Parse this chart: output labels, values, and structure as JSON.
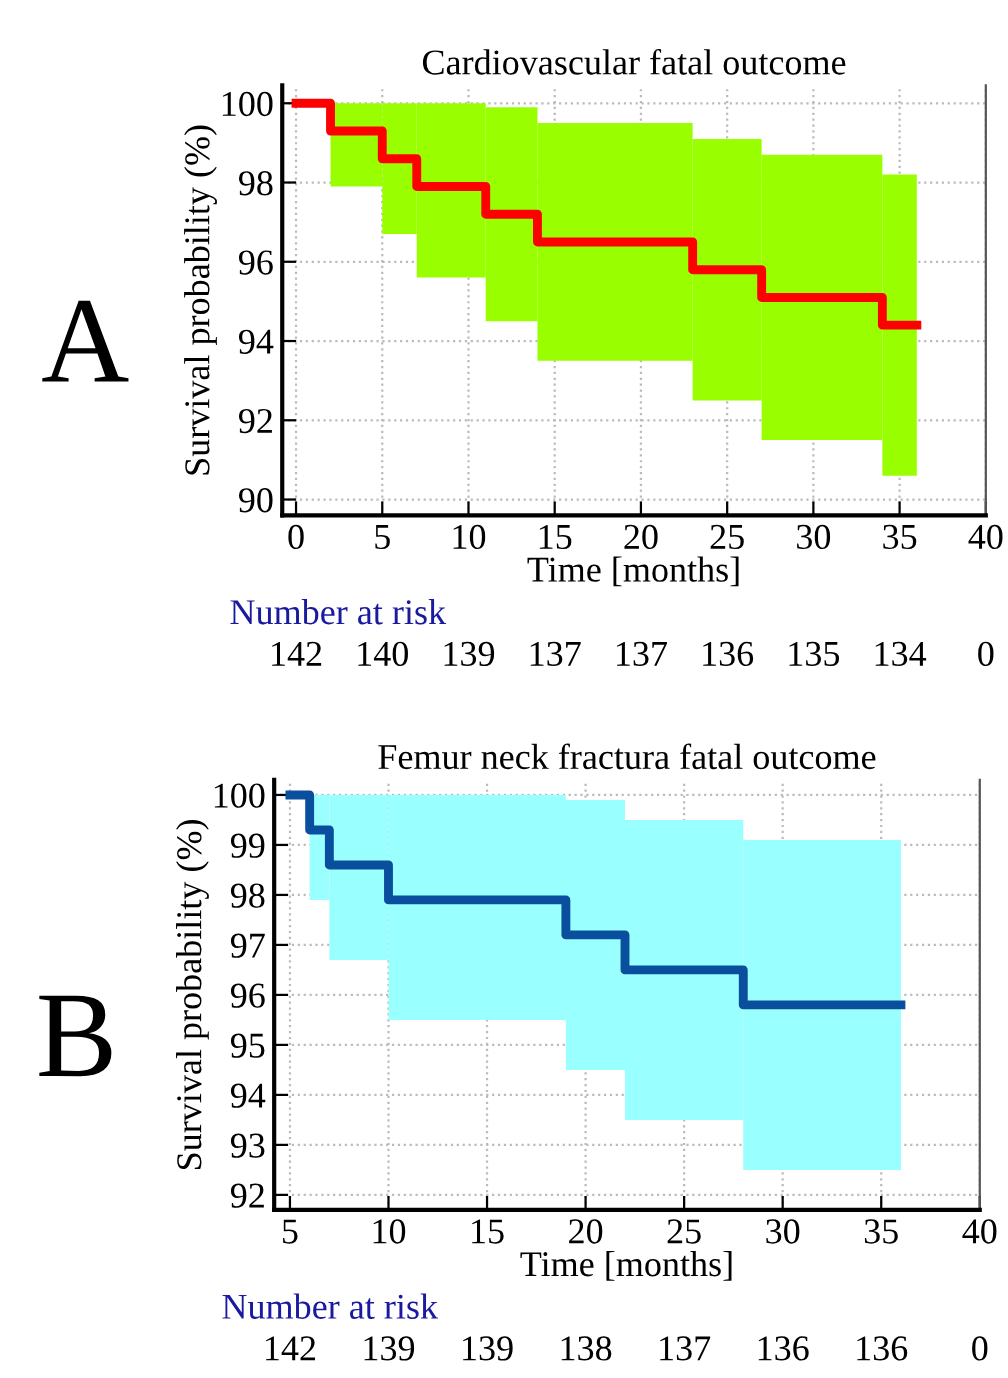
{
  "chart_data": [
    {
      "type": "step",
      "title": "Cardiovascular fatal outcome",
      "xlabel": "Time [months]",
      "ylabel": "Survival probability (%)",
      "xlim": [
        -0.8,
        40
      ],
      "ylim": [
        89.6,
        100.45
      ],
      "xticks": [
        0,
        5,
        10,
        15,
        20,
        25,
        30,
        35,
        40
      ],
      "yticks": [
        90,
        92,
        94,
        96,
        98,
        100
      ],
      "grid": true,
      "line_style": "solid",
      "marker": "none",
      "series": [
        {
          "color": "#ff0000",
          "colors": [
            "#99ff00",
            "#99ff00",
            "#99ff00",
            "#99ff00",
            "#99ff00",
            "#99ff00",
            "#99ff00",
            "#99ff00",
            "#99ff00",
            "#99ff00"
          ],
          "x": [
            0,
            2,
            5,
            7,
            11,
            14,
            23,
            27,
            34,
            36
          ],
          "values": [
            100,
            99.3,
            98.6,
            97.9,
            97.2,
            96.5,
            95.8,
            95.1,
            94.4,
            94.4
          ],
          "upper": [
            null,
            100,
            100,
            100,
            99.9,
            99.5,
            99.1,
            98.7,
            98.2,
            98.2
          ],
          "lower": [
            null,
            97.9,
            96.7,
            95.6,
            94.5,
            93.5,
            92.5,
            91.5,
            90.6,
            90.6
          ]
        }
      ],
      "annotations": [
        "A",
        "Number at risk",
        "142",
        "140",
        "139",
        "137",
        "137",
        "136",
        "135",
        "134",
        "0"
      ]
    },
    {
      "type": "step",
      "title": "Femur neck fractura fatal outcome",
      "xlabel": "Time [months]",
      "ylabel": "Survival probability (%)",
      "xlim": [
        4.2,
        40
      ],
      "ylim": [
        91.7,
        100.3
      ],
      "xticks": [
        5,
        10,
        15,
        20,
        25,
        30,
        35,
        40
      ],
      "yticks": [
        92,
        93,
        94,
        95,
        96,
        97,
        98,
        99,
        100
      ],
      "grid": true,
      "line_style": "solid",
      "marker": "none",
      "series": [
        {
          "color": "#0a4f9e",
          "colors": [
            "#99ffff",
            "#99ffff",
            "#99ffff",
            "#99ffff",
            "#99ffff",
            "#99ffff",
            "#99ffff",
            "#99ffff"
          ],
          "x": [
            5,
            6,
            7,
            10,
            19,
            22,
            28,
            36
          ],
          "values": [
            100,
            99.3,
            98.6,
            97.9,
            97.2,
            96.5,
            95.8,
            95.8
          ],
          "upper": [
            null,
            100,
            100,
            100,
            99.9,
            99.5,
            99.1,
            99.1
          ],
          "lower": [
            null,
            97.9,
            96.7,
            95.5,
            94.5,
            93.5,
            92.5,
            92.5
          ]
        }
      ],
      "annotations": [
        "B",
        "Number at risk",
        "142",
        "139",
        "139",
        "138",
        "137",
        "136",
        "136",
        "0"
      ]
    }
  ]
}
